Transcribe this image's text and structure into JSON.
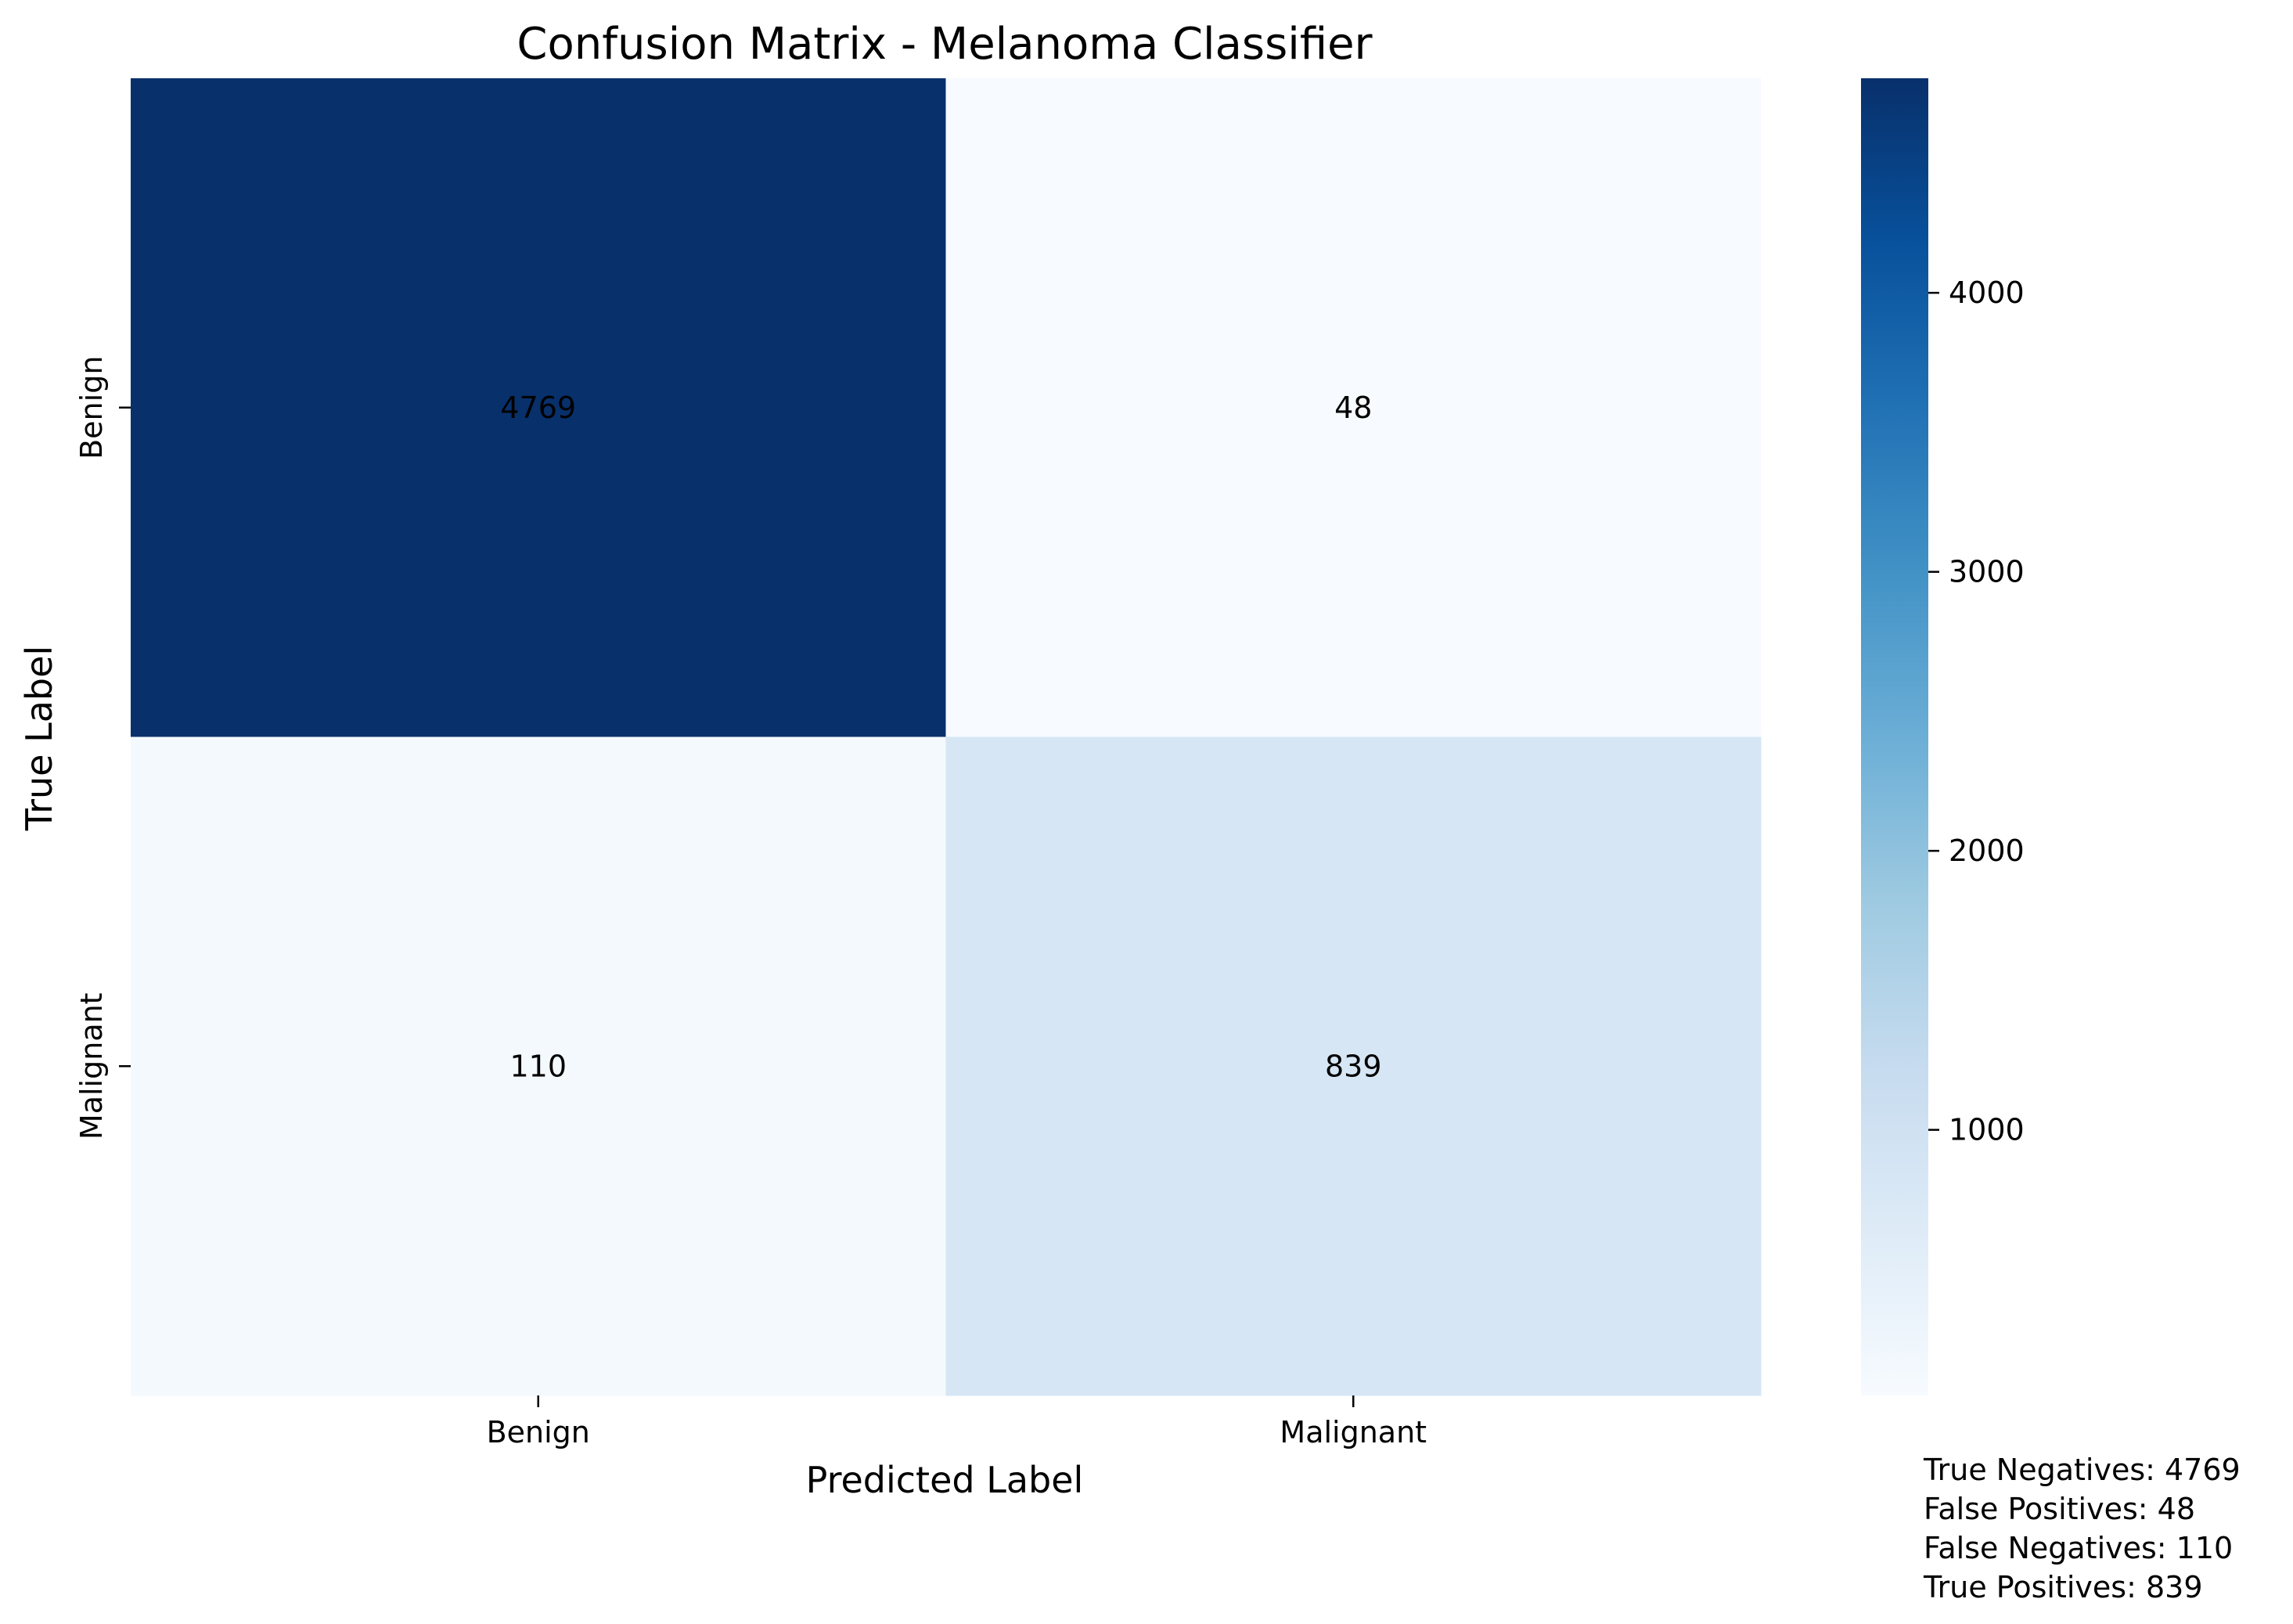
{
  "chart_data": {
    "type": "heatmap",
    "title": "Confusion Matrix - Melanoma Classifier",
    "xlabel": "Predicted Label",
    "ylabel": "True Label",
    "x_categories": [
      "Benign",
      "Malignant"
    ],
    "y_categories": [
      "Benign",
      "Malignant"
    ],
    "values": [
      [
        4769,
        48
      ],
      [
        110,
        839
      ]
    ],
    "colormap": "Blues",
    "colorbar": {
      "range": [
        48,
        4769
      ],
      "ticks": [
        1000,
        2000,
        3000,
        4000
      ],
      "tick_labels": [
        "1000",
        "2000",
        "3000",
        "4000"
      ]
    },
    "annotations": [
      "True Negatives: 4769",
      "False Positives: 48",
      "False Negatives: 110",
      "True Positives: 839"
    ],
    "grid": false
  }
}
